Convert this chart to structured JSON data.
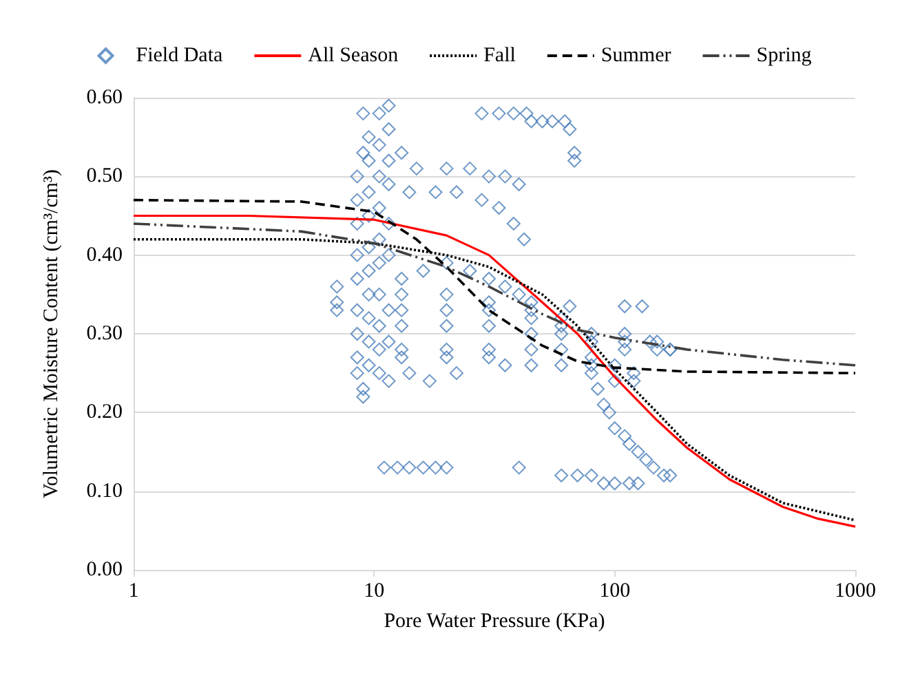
{
  "chart_data": {
    "type": "scatter",
    "xlabel": "Pore Water Pressure (KPa)",
    "ylabel": "Volumetric Moisture Content (cm³/cm³)",
    "log": "x",
    "xlim": [
      1,
      1000
    ],
    "xticks": [
      1,
      10,
      100,
      1000
    ],
    "ylim": [
      0,
      0.6
    ],
    "yticks": [
      {
        "value": 0,
        "label": "0.00"
      },
      {
        "value": 0.1,
        "label": "0.10"
      },
      {
        "value": 0.2,
        "label": "0.20"
      },
      {
        "value": 0.3,
        "label": "0.30"
      },
      {
        "value": 0.4,
        "label": "0.40"
      },
      {
        "value": 0.5,
        "label": "0.50"
      },
      {
        "value": 0.6,
        "label": "0.60"
      }
    ],
    "grid": "y",
    "legend": "top",
    "series": [
      {
        "name": "Field Data",
        "marker": "diamond",
        "color": "#4a7ebb",
        "x": [
          7,
          7,
          7,
          8.5,
          8.5,
          8.5,
          8.5,
          8.5,
          8.5,
          8.5,
          8.5,
          8.5,
          9,
          9,
          9,
          9,
          9.5,
          9.5,
          9.5,
          9.5,
          9.5,
          9.5,
          9.5,
          9.5,
          9.5,
          9.5,
          10.5,
          10.5,
          10.5,
          10.5,
          10.5,
          10.5,
          10.5,
          10.5,
          10.5,
          10.5,
          11.5,
          11.5,
          11.5,
          11.5,
          11.5,
          11.5,
          11.5,
          11.5,
          11.5,
          11,
          12.5,
          14,
          16,
          18,
          20,
          13,
          15,
          20,
          25,
          30,
          35,
          40,
          14,
          18,
          22,
          28,
          33,
          38,
          42,
          13,
          16,
          20,
          25,
          30,
          35,
          40,
          45,
          13,
          20,
          30,
          45,
          60,
          13,
          20,
          30,
          45,
          60,
          80,
          110,
          150,
          170,
          13,
          20,
          30,
          45,
          60,
          80,
          110,
          150,
          13,
          20,
          30,
          45,
          60,
          80,
          110,
          170,
          13,
          20,
          30,
          45,
          60,
          80,
          100,
          120,
          14,
          17,
          22,
          35,
          80,
          100,
          120,
          85,
          90,
          95,
          100,
          110,
          115,
          125,
          135,
          145,
          160,
          170,
          60,
          70,
          80,
          90,
          100,
          115,
          125,
          40,
          28,
          33,
          38,
          43,
          45,
          50,
          55,
          62,
          65,
          68,
          68,
          65,
          110,
          130,
          140
        ],
        "values": [
          0.36,
          0.34,
          0.33,
          0.5,
          0.47,
          0.44,
          0.4,
          0.37,
          0.33,
          0.3,
          0.27,
          0.25,
          0.58,
          0.53,
          0.23,
          0.22,
          0.55,
          0.52,
          0.48,
          0.45,
          0.41,
          0.38,
          0.35,
          0.32,
          0.29,
          0.26,
          0.58,
          0.54,
          0.5,
          0.46,
          0.42,
          0.39,
          0.35,
          0.31,
          0.28,
          0.25,
          0.59,
          0.56,
          0.52,
          0.49,
          0.44,
          0.4,
          0.33,
          0.29,
          0.24,
          0.13,
          0.13,
          0.13,
          0.13,
          0.13,
          0.13,
          0.53,
          0.51,
          0.51,
          0.51,
          0.5,
          0.5,
          0.49,
          0.48,
          0.48,
          0.48,
          0.47,
          0.46,
          0.44,
          0.42,
          0.37,
          0.38,
          0.39,
          0.38,
          0.37,
          0.36,
          0.35,
          0.34,
          0.35,
          0.35,
          0.34,
          0.33,
          0.32,
          0.33,
          0.33,
          0.33,
          0.32,
          0.31,
          0.3,
          0.3,
          0.29,
          0.28,
          0.31,
          0.31,
          0.31,
          0.3,
          0.3,
          0.29,
          0.29,
          0.28,
          0.28,
          0.28,
          0.28,
          0.28,
          0.28,
          0.27,
          0.28,
          0.28,
          0.27,
          0.27,
          0.27,
          0.26,
          0.26,
          0.26,
          0.26,
          0.25,
          0.25,
          0.24,
          0.25,
          0.26,
          0.25,
          0.24,
          0.24,
          0.23,
          0.21,
          0.2,
          0.18,
          0.17,
          0.16,
          0.15,
          0.14,
          0.13,
          0.12,
          0.12,
          0.12,
          0.12,
          0.12,
          0.11,
          0.11,
          0.11,
          0.11,
          0.13,
          0.58,
          0.58,
          0.58,
          0.58,
          0.57,
          0.57,
          0.57,
          0.57,
          0.56,
          0.53,
          0.52,
          0.335,
          0.335,
          0.335,
          0.29
        ]
      },
      {
        "name": "All Season",
        "type": "line",
        "line_style": "solid",
        "color": "#ff0000",
        "x": [
          1,
          3,
          10,
          20,
          30,
          50,
          70,
          100,
          150,
          200,
          300,
          500,
          700,
          1000
        ],
        "values": [
          0.45,
          0.45,
          0.445,
          0.425,
          0.4,
          0.34,
          0.3,
          0.245,
          0.19,
          0.155,
          0.115,
          0.08,
          0.065,
          0.055
        ]
      },
      {
        "name": "Fall",
        "type": "line",
        "line_style": "dotted",
        "color": "#000000",
        "x": [
          1,
          5,
          10,
          20,
          30,
          50,
          70,
          100,
          150,
          200,
          300,
          500,
          1000
        ],
        "values": [
          0.42,
          0.42,
          0.415,
          0.4,
          0.385,
          0.35,
          0.31,
          0.255,
          0.2,
          0.16,
          0.12,
          0.085,
          0.063
        ]
      },
      {
        "name": "Summer",
        "type": "line",
        "line_style": "dashed",
        "color": "#000000",
        "x": [
          1,
          5,
          10,
          15,
          20,
          30,
          50,
          70,
          100,
          200,
          1000
        ],
        "values": [
          0.47,
          0.468,
          0.455,
          0.42,
          0.385,
          0.33,
          0.285,
          0.265,
          0.257,
          0.252,
          0.25
        ]
      },
      {
        "name": "Spring",
        "type": "line",
        "line_style": "dashdotdot",
        "color": "#404040",
        "x": [
          1,
          5,
          10,
          20,
          30,
          50,
          70,
          100,
          200,
          500,
          1000
        ],
        "values": [
          0.44,
          0.43,
          0.415,
          0.385,
          0.36,
          0.325,
          0.305,
          0.295,
          0.28,
          0.267,
          0.26
        ]
      }
    ]
  }
}
